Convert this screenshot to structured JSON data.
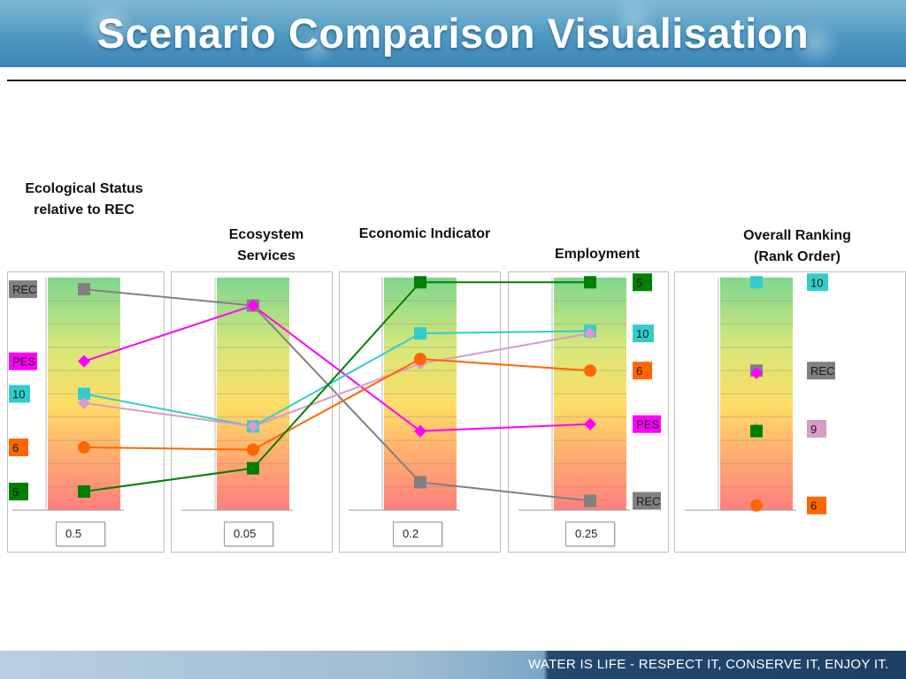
{
  "slide": {
    "title": "Scenario Comparison Visualisation",
    "footer": "WATER IS LIFE - RESPECT IT, CONSERVE IT, ENJOY IT."
  },
  "chart_data": {
    "type": "line",
    "categories": [
      "Ecological Status relative to REC",
      "Ecosystem Services",
      "Economic Indicator",
      "Employment",
      "Overall Ranking (Rank Order)"
    ],
    "weights": [
      "0.5",
      "0.05",
      "0.2",
      "0.25"
    ],
    "ylim": [
      0,
      1
    ],
    "grid": true,
    "series": [
      {
        "name": "REC",
        "color": "#808080",
        "marker": "square",
        "values": [
          0.95,
          0.88,
          0.12,
          0.04,
          0.6
        ]
      },
      {
        "name": "PES",
        "color": "#ff00ff",
        "marker": "diamond",
        "values": [
          0.64,
          0.88,
          0.34,
          0.37,
          0.59
        ]
      },
      {
        "name": "10",
        "color": "#33cccc",
        "marker": "square",
        "values": [
          0.5,
          0.36,
          0.76,
          0.77,
          0.98
        ]
      },
      {
        "name": "9",
        "color": "#d99bc8",
        "marker": "diamond",
        "values": [
          0.46,
          0.36,
          0.63,
          0.76,
          0.35
        ]
      },
      {
        "name": "6",
        "color": "#ff6600",
        "marker": "circle",
        "values": [
          0.27,
          0.26,
          0.65,
          0.6,
          0.02
        ]
      },
      {
        "name": "5",
        "color": "#008000",
        "marker": "square",
        "values": [
          0.08,
          0.18,
          0.98,
          0.98,
          0.34
        ]
      }
    ],
    "end_labels": [
      "5",
      "10",
      "6",
      "PES",
      "REC"
    ],
    "ranking_labels": [
      "10",
      "REC",
      "9",
      "6"
    ],
    "left_labels": [
      "REC",
      "PES",
      "10",
      "6",
      "5"
    ]
  }
}
